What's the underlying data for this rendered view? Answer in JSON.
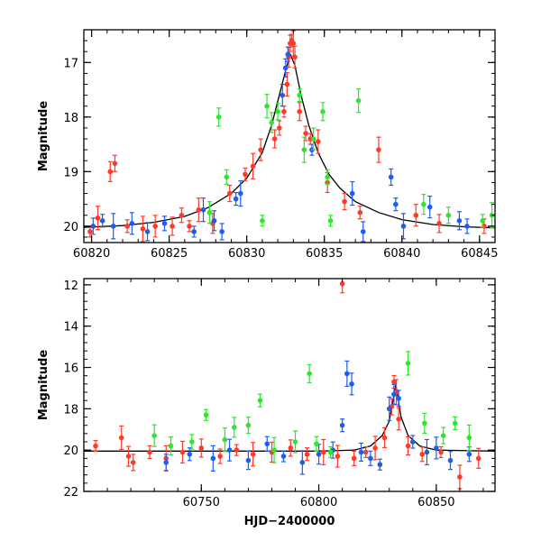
{
  "chart_data": [
    {
      "type": "scatter",
      "xlabel": "",
      "ylabel": "Magnitude",
      "xlim": [
        60819.5,
        60846
      ],
      "ylim": [
        20.3,
        16.4
      ],
      "y_inverted": true,
      "xticks": [
        60820,
        60825,
        60830,
        60835,
        60840,
        60845
      ],
      "xtick_labels": [
        "60820",
        "60825",
        "60830",
        "60835",
        "60840",
        "60845"
      ],
      "yticks": [
        17,
        18,
        19,
        20
      ],
      "ytick_labels": [
        "17",
        "18",
        "19",
        "20"
      ],
      "grid": false,
      "legend": "none",
      "model_curve": {
        "color": "#000000",
        "x": [
          60819.5,
          60822,
          60824,
          60826,
          60827.5,
          60829,
          60830,
          60831,
          60831.6,
          60832.1,
          60832.5,
          60832.8,
          60833.1,
          60833.5,
          60834,
          60834.6,
          60835.3,
          60836,
          60837,
          60838.5,
          60840,
          60842,
          60844,
          60846
        ],
        "y": [
          20.02,
          19.99,
          19.93,
          19.82,
          19.66,
          19.4,
          19.12,
          18.65,
          18.15,
          17.6,
          17.15,
          16.85,
          17.05,
          17.6,
          18.15,
          18.65,
          19.05,
          19.3,
          19.55,
          19.75,
          19.88,
          19.97,
          20.01,
          20.03
        ]
      },
      "series": [
        {
          "color": "#ff3a2a",
          "x": [
            60819.9,
            60820.4,
            60821.2,
            60821.5,
            60822.3,
            60823.3,
            60824.1,
            60825.2,
            60825.8,
            60826.3,
            60826.9,
            60827.8,
            60828.9,
            60829.9,
            60830.4,
            60830.9,
            60831.8,
            60832.1,
            60832.4,
            60832.6,
            60832.7,
            60832.8,
            60832.9,
            60833.0,
            60833.1,
            60833.4,
            60833.8,
            60834.1,
            60834.6,
            60835.2,
            60836.3,
            60837.3,
            60838.5,
            60840.9,
            60842.4,
            60845.3
          ],
          "y": [
            20.1,
            19.85,
            19.0,
            18.85,
            20.0,
            20.05,
            20.0,
            20.0,
            19.8,
            20.0,
            19.7,
            19.95,
            19.4,
            19.05,
            18.9,
            18.6,
            18.4,
            18.2,
            17.9,
            17.4,
            16.9,
            16.65,
            16.6,
            16.65,
            16.9,
            17.9,
            18.3,
            18.4,
            18.45,
            19.2,
            19.55,
            19.75,
            18.6,
            19.8,
            19.95,
            20.0
          ]
        },
        {
          "color": "#1f5cf0",
          "x": [
            60820.1,
            60820.7,
            60821.4,
            60822.6,
            60823.6,
            60824.7,
            60826.6,
            60827.2,
            60827.9,
            60828.4,
            60829.3,
            60829.6,
            60832.3,
            60832.5,
            60832.65,
            60834.2,
            60836.8,
            60837.5,
            60839.3,
            60839.6,
            60840.1,
            60841.8,
            60843.7,
            60844.2
          ],
          "y": [
            20.0,
            19.9,
            20.0,
            19.95,
            20.1,
            19.95,
            20.1,
            19.7,
            19.9,
            20.1,
            19.5,
            19.4,
            17.6,
            17.1,
            16.85,
            18.6,
            19.4,
            20.1,
            19.1,
            19.6,
            20.0,
            19.65,
            19.9,
            20.0
          ]
        },
        {
          "color": "#2ee62e",
          "x": [
            60827.6,
            60828.2,
            60828.7,
            60831.0,
            60831.3,
            60831.6,
            60832.0,
            60833.4,
            60833.7,
            60834.3,
            60834.9,
            60835.2,
            60835.4,
            60837.2,
            60841.4,
            60843.0,
            60845.2,
            60845.8
          ],
          "y": [
            19.75,
            18.0,
            19.1,
            19.9,
            17.8,
            18.1,
            17.9,
            17.6,
            18.6,
            18.4,
            17.9,
            19.1,
            19.9,
            17.7,
            19.6,
            19.8,
            19.9,
            19.8
          ]
        }
      ]
    },
    {
      "type": "scatter",
      "xlabel": "HJD−2400000",
      "ylabel": "Magnitude",
      "xlim": [
        60700,
        60875
      ],
      "ylim": [
        22,
        11.7
      ],
      "y_inverted": true,
      "xticks": [
        60750,
        60800,
        60850
      ],
      "xtick_labels": [
        "60750",
        "60800",
        "60850"
      ],
      "yticks": [
        12,
        14,
        16,
        18,
        20,
        22
      ],
      "ytick_labels": [
        "12",
        "14",
        "16",
        "18",
        "20",
        "22"
      ],
      "grid": false,
      "legend": "none",
      "model_curve": {
        "color": "#000000",
        "x": [
          60700,
          60800,
          60815,
          60822,
          60827,
          60830,
          60832.8,
          60835,
          60838,
          60843,
          60850,
          60875
        ],
        "y": [
          20.05,
          20.05,
          20.0,
          19.8,
          19.3,
          18.6,
          16.85,
          18.4,
          19.3,
          19.8,
          20.0,
          20.05
        ]
      },
      "series": [
        {
          "color": "#ff3a2a",
          "x": [
            60705,
            60716,
            60719,
            60721,
            60728,
            60735,
            60742,
            60750,
            60758,
            60765,
            60772,
            60780,
            60788,
            60795,
            60802,
            60808,
            60810,
            60815,
            60820,
            60824,
            60828,
            60831,
            60832,
            60833,
            60834,
            60838,
            60844,
            60852,
            60860,
            60868
          ],
          "y": [
            19.8,
            19.4,
            20.3,
            20.6,
            20.1,
            20.4,
            20.1,
            19.9,
            20.3,
            20.0,
            20.2,
            20.1,
            19.9,
            20.2,
            20.1,
            20.3,
            11.95,
            20.4,
            20.1,
            19.9,
            19.4,
            17.9,
            16.7,
            17.2,
            18.5,
            19.8,
            20.2,
            20.1,
            21.3,
            20.4
          ]
        },
        {
          "color": "#1f5cf0",
          "x": [
            60735,
            60745,
            60755,
            60762,
            60770,
            60778,
            60785,
            60793,
            60800,
            60806,
            60810,
            60812,
            60814,
            60818,
            60822,
            60826,
            60830,
            60832,
            60834,
            60840,
            60846,
            60850,
            60856,
            60864
          ],
          "y": [
            20.6,
            20.2,
            20.4,
            20.0,
            20.5,
            19.7,
            20.3,
            20.6,
            20.2,
            20.0,
            18.8,
            16.3,
            16.8,
            20.1,
            20.4,
            20.7,
            18.0,
            17.3,
            17.5,
            19.6,
            20.1,
            19.9,
            20.5,
            20.2
          ]
        },
        {
          "color": "#2ee62e",
          "x": [
            60730,
            60737,
            60746,
            60752,
            60760,
            60764,
            60770,
            60775,
            60781,
            60790,
            60796,
            60799,
            60805,
            60838,
            60845,
            60853,
            60858,
            60864
          ],
          "y": [
            19.3,
            19.8,
            19.6,
            18.3,
            19.5,
            18.9,
            18.8,
            17.6,
            20.0,
            19.6,
            16.3,
            19.7,
            20.1,
            15.8,
            18.7,
            19.3,
            18.7,
            19.4
          ]
        }
      ]
    }
  ]
}
